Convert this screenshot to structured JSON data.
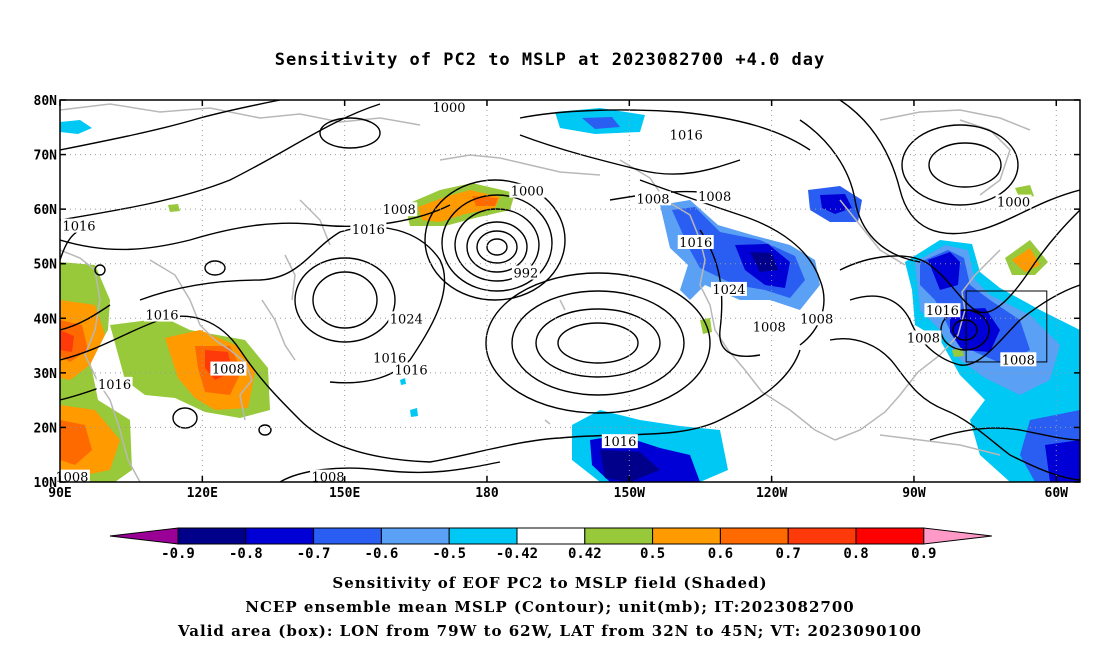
{
  "title": "Sensitivity of PC2 to MSLP at 2023082700 +4.0 day",
  "lat_labels": [
    "80N",
    "70N",
    "60N",
    "50N",
    "40N",
    "30N",
    "20N",
    "10N"
  ],
  "lon_labels": [
    "90E",
    "120E",
    "150E",
    "180",
    "150W",
    "120W",
    "90W",
    "60W"
  ],
  "contour_labels": [
    {
      "text": "1000",
      "lon": 172,
      "lat": 78.5
    },
    {
      "text": "1016",
      "lon": 222,
      "lat": 73.5
    },
    {
      "text": "1008",
      "lon": 228,
      "lat": 62.2
    },
    {
      "text": "1000",
      "lon": 291,
      "lat": 61.2
    },
    {
      "text": "1016",
      "lon": 94,
      "lat": 56.8
    },
    {
      "text": "1008",
      "lon": 161.5,
      "lat": 59.8
    },
    {
      "text": "1000",
      "lon": 188.5,
      "lat": 63.2
    },
    {
      "text": "1008",
      "lon": 215,
      "lat": 61.8
    },
    {
      "text": "1016",
      "lon": 155,
      "lat": 56.2
    },
    {
      "text": "1016",
      "lon": 224,
      "lat": 53.8
    },
    {
      "text": "992",
      "lon": 188.2,
      "lat": 48.2
    },
    {
      "text": "1024",
      "lon": 231,
      "lat": 45.2
    },
    {
      "text": "1024",
      "lon": 163,
      "lat": 39.8
    },
    {
      "text": "1016",
      "lon": 111.5,
      "lat": 40.5
    },
    {
      "text": "1008",
      "lon": 249.5,
      "lat": 39.8
    },
    {
      "text": "1016",
      "lon": 276,
      "lat": 41.3
    },
    {
      "text": "1008",
      "lon": 239.5,
      "lat": 38.3
    },
    {
      "text": "1008",
      "lon": 272,
      "lat": 36.3
    },
    {
      "text": "1016",
      "lon": 159.5,
      "lat": 32.6
    },
    {
      "text": "1008",
      "lon": 125.5,
      "lat": 30.6
    },
    {
      "text": "1016",
      "lon": 164,
      "lat": 30.4
    },
    {
      "text": "1008",
      "lon": 292,
      "lat": 32.3
    },
    {
      "text": "1016",
      "lon": 101.5,
      "lat": 27.8
    },
    {
      "text": "1016",
      "lon": 208,
      "lat": 17.3
    },
    {
      "text": "1008",
      "lon": 92.5,
      "lat": 10.8
    },
    {
      "text": "1008",
      "lon": 146.5,
      "lat": 10.8
    }
  ],
  "colorbar": {
    "colors": [
      "#9b0096",
      "#00008a",
      "#0000d6",
      "#2a5ef2",
      "#5aa0f5",
      "#00c8f5",
      "#ffffff",
      "#98c93a",
      "#ff9a00",
      "#ff6a00",
      "#ff3a0a",
      "#ff0000",
      "#ff99c8"
    ],
    "labels": [
      "-0.9",
      "-0.8",
      "-0.7",
      "-0.6",
      "-0.5",
      "-0.42",
      "0.42",
      "0.5",
      "0.6",
      "0.7",
      "0.8",
      "0.9"
    ]
  },
  "valid_box": {
    "lon_min": -79,
    "lon_max": -62,
    "lat_min": 32,
    "lat_max": 45
  },
  "captions": {
    "line1": "Sensitivity of EOF PC2 to MSLP field (Shaded)",
    "line2": "NCEP ensemble mean MSLP (Contour); unit(mb); IT:2023082700",
    "line3": "Valid area (box): LON from 79W to 62W, LAT from 32N to 45N; VT: 2023090100"
  }
}
